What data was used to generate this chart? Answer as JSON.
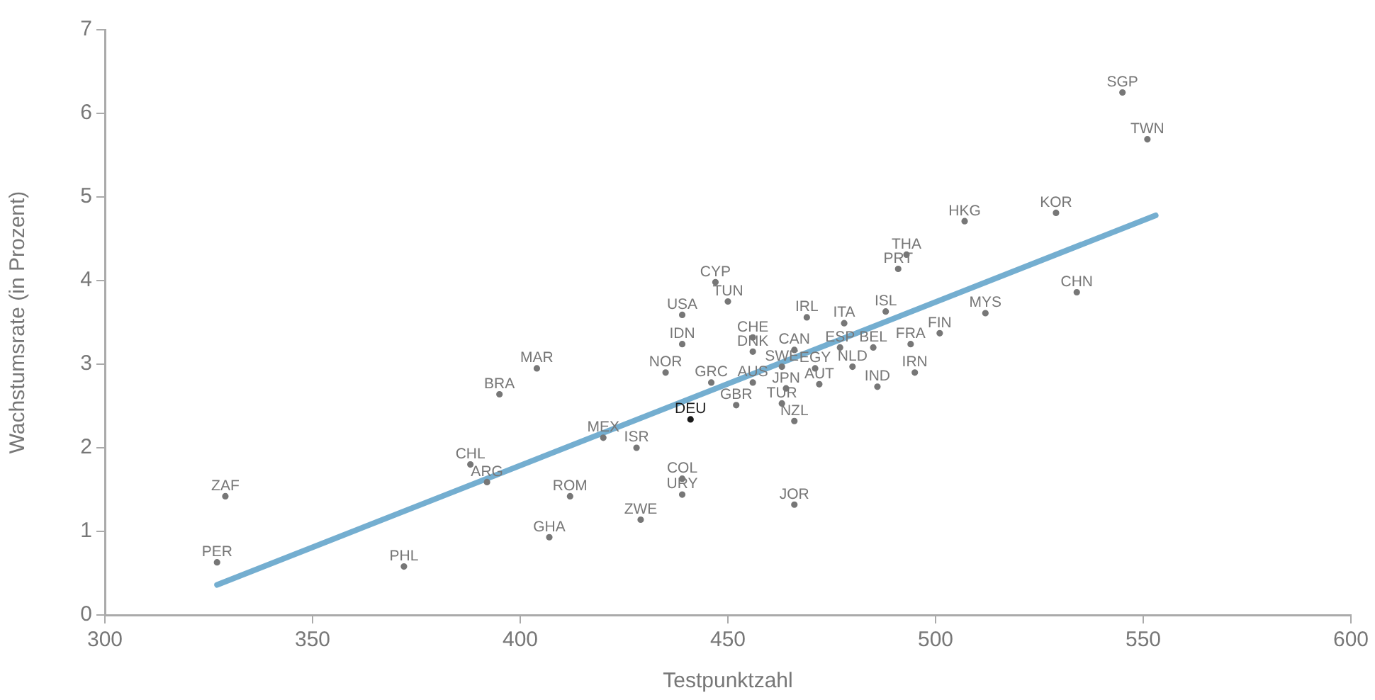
{
  "chart_data": {
    "type": "scatter",
    "xlabel": "Testpunktzahl",
    "ylabel": "Wachstumsrate (in Prozent)",
    "xlim": [
      300,
      600
    ],
    "xticks": [
      300,
      350,
      400,
      450,
      500,
      550,
      600
    ],
    "ylim": [
      0,
      7
    ],
    "yticks": [
      0,
      1,
      2,
      3,
      4,
      5,
      6,
      7
    ],
    "grid": false,
    "legend": false,
    "marker": "circle",
    "series": [
      {
        "color": "#777777",
        "x": [
          545,
          551,
          529,
          507,
          534,
          493,
          491,
          512,
          488,
          501,
          494,
          495,
          486,
          485,
          477,
          480,
          472,
          471,
          464,
          463,
          466,
          463,
          466,
          456,
          456,
          469,
          478,
          447,
          450,
          439,
          439,
          435,
          446,
          456,
          452,
          420,
          428,
          439,
          439,
          466,
          429,
          412,
          407,
          404,
          395,
          388,
          392,
          329,
          327,
          372
        ],
        "values": [
          6.25,
          5.69,
          4.81,
          4.71,
          3.86,
          4.31,
          4.14,
          3.61,
          3.63,
          3.37,
          3.24,
          2.9,
          2.73,
          3.2,
          3.2,
          2.97,
          2.76,
          2.95,
          2.71,
          2.53,
          2.32,
          2.97,
          3.17,
          3.15,
          3.32,
          3.56,
          3.49,
          3.98,
          3.75,
          3.59,
          3.24,
          2.9,
          2.78,
          2.78,
          2.51,
          2.12,
          2.0,
          1.63,
          1.44,
          1.32,
          1.14,
          1.42,
          0.93,
          2.95,
          2.64,
          1.8,
          1.59,
          1.42,
          0.63,
          0.58
        ],
        "value_labels": [
          "SGP",
          "TWN",
          "KOR",
          "HKG",
          "CHN",
          "THA",
          "PRT",
          "MYS",
          "ISL",
          "FIN",
          "FRA",
          "IRN",
          "IND",
          "BEL",
          "ESP",
          "NLD",
          "AUT",
          "EGY",
          "JPN",
          "TUR",
          "NZL",
          "SWE",
          "CAN",
          "DNK",
          "CHE",
          "IRL",
          "ITA",
          "CYP",
          "TUN",
          "USA",
          "IDN",
          "NOR",
          "GRC",
          "AUS",
          "GBR",
          "MEX",
          "ISR",
          "COL",
          "URY",
          "JOR",
          "ZWE",
          "ROM",
          "GHA",
          "MAR",
          "BRA",
          "CHL",
          "ARG",
          "ZAF",
          "PER",
          "PHL"
        ]
      },
      {
        "color": "#1a1a1a",
        "x": [
          441
        ],
        "values": [
          2.34
        ],
        "value_labels": [
          "DEU"
        ]
      },
      {
        "type": "line",
        "color": "#74aed0",
        "x": [
          327,
          553
        ],
        "values": [
          0.36,
          4.78
        ],
        "marker": "none"
      }
    ]
  }
}
